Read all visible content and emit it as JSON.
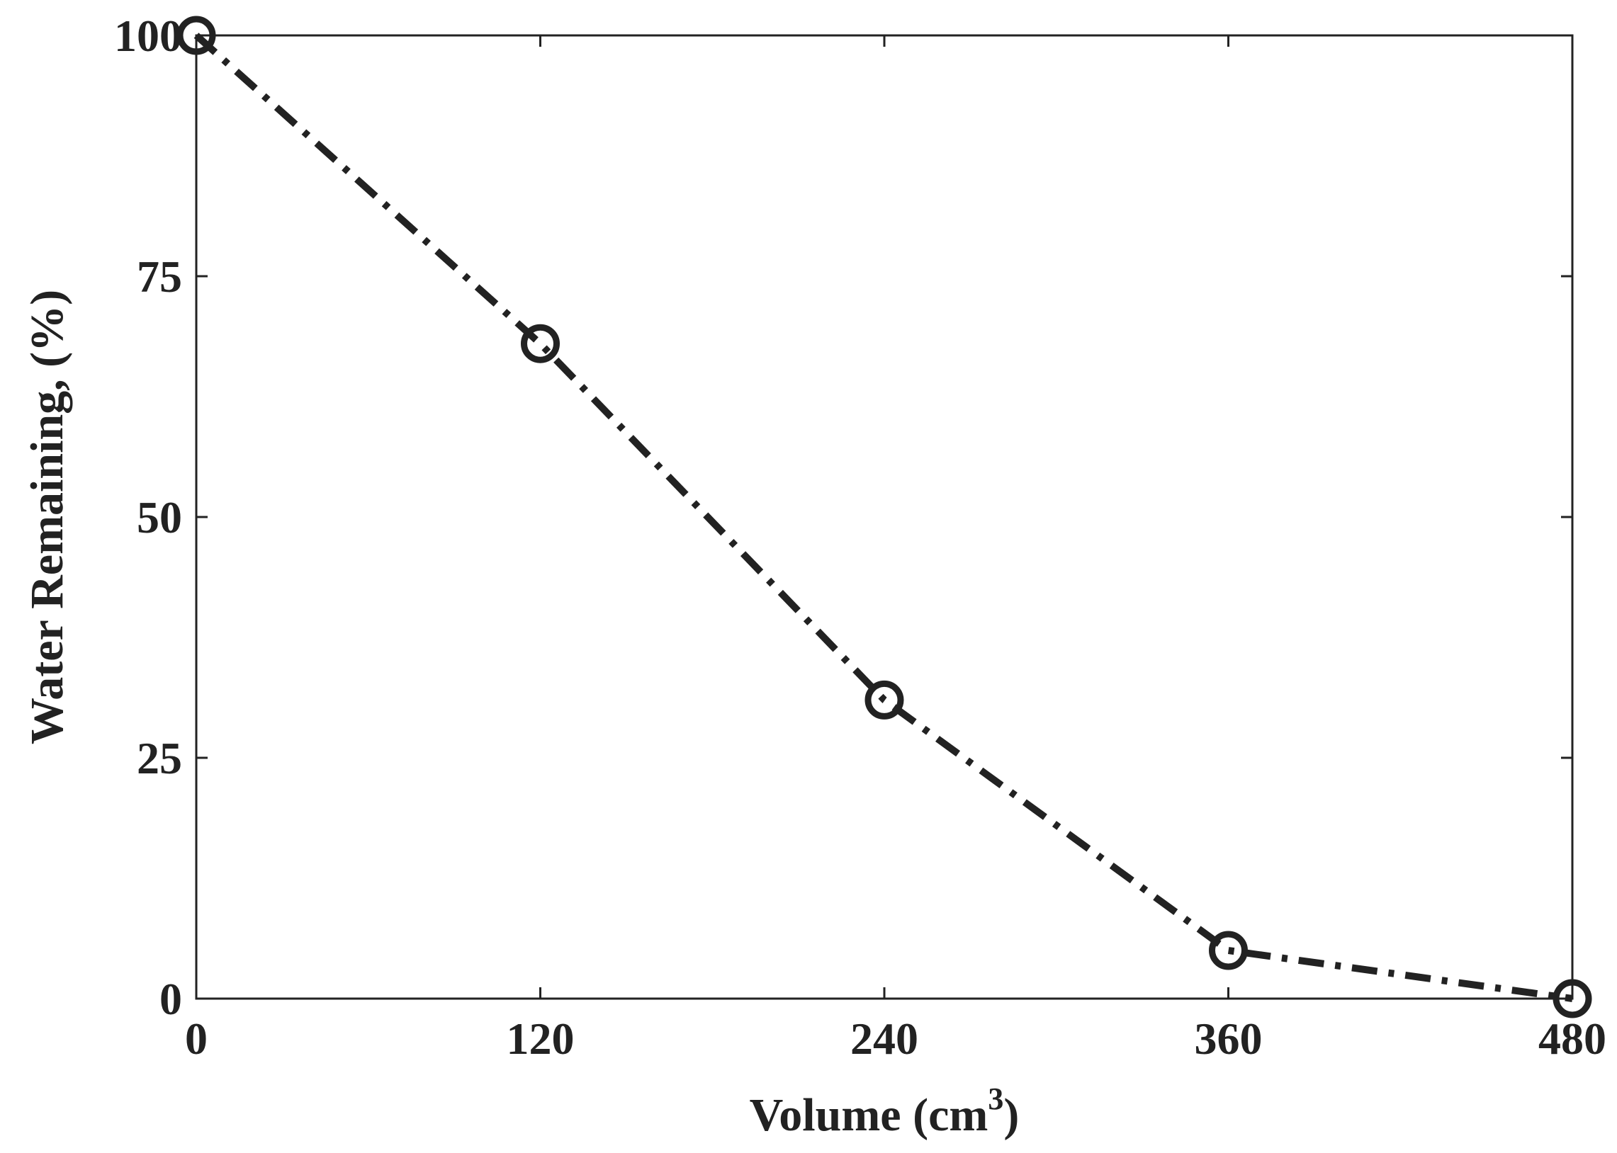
{
  "chart_data": {
    "type": "line",
    "x": [
      0,
      120,
      240,
      360,
      480
    ],
    "series": [
      {
        "values": [
          100,
          68,
          31,
          5,
          0
        ],
        "line_style": "dash-dot",
        "marker": "open-circle",
        "color": "#222222"
      }
    ],
    "xlabel": {
      "text": "Volume (cm",
      "superscript": "3",
      "suffix": ")"
    },
    "ylabel": "Water Remaining, (%)",
    "xticks": [
      0,
      120,
      240,
      360,
      480
    ],
    "yticks": [
      0,
      25,
      50,
      75,
      100
    ],
    "xtick_labels": [
      "0",
      "120",
      "240",
      "360",
      "480"
    ],
    "ytick_labels": [
      "0",
      "25",
      "50",
      "75",
      "100"
    ],
    "xlim": [
      0,
      480
    ],
    "ylim": [
      0,
      100
    ],
    "grid": false,
    "box": true
  }
}
